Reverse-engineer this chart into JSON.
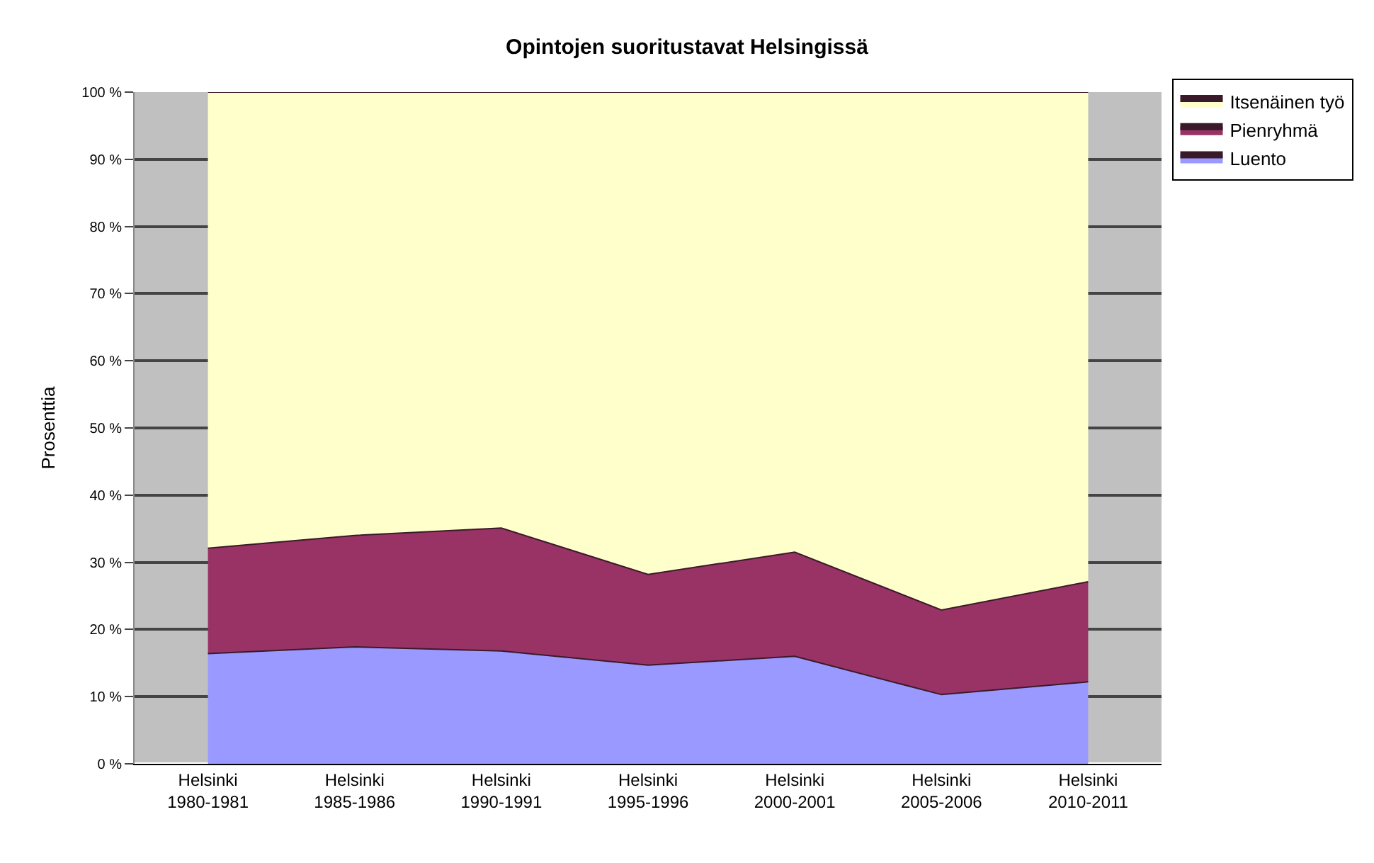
{
  "chart_data": {
    "type": "area",
    "title": "Opintojen suoritustavat Helsingissä",
    "ylabel": "Prosenttia",
    "stacked": true,
    "categories": [
      "Helsinki\n1980-1981",
      "Helsinki\n1985-1986",
      "Helsinki\n1990-1991",
      "Helsinki\n1995-1996",
      "Helsinki\n2000-2001",
      "Helsinki\n2005-2006",
      "Helsinki\n2010-2011"
    ],
    "series": [
      {
        "name": "Luento",
        "color": "#9999ff",
        "values": [
          16.4,
          17.4,
          16.8,
          14.7,
          16.0,
          10.3,
          12.2
        ]
      },
      {
        "name": "Pienryhmä",
        "color": "#993366",
        "values": [
          15.7,
          16.6,
          18.3,
          13.5,
          15.5,
          12.6,
          14.9
        ]
      },
      {
        "name": "Itsenäinen työ",
        "color": "#ffffcc",
        "values": [
          67.9,
          66.0,
          64.9,
          71.8,
          68.5,
          77.1,
          72.9
        ]
      }
    ],
    "ylim": [
      0,
      100
    ],
    "yticks": [
      {
        "value": 0,
        "label": "0 %"
      },
      {
        "value": 10,
        "label": "10 %"
      },
      {
        "value": 20,
        "label": "20 %"
      },
      {
        "value": 30,
        "label": "30 %"
      },
      {
        "value": 40,
        "label": "40 %"
      },
      {
        "value": 50,
        "label": "50 %"
      },
      {
        "value": 60,
        "label": "60 %"
      },
      {
        "value": 70,
        "label": "70 %"
      },
      {
        "value": 80,
        "label": "80 %"
      },
      {
        "value": 90,
        "label": "90 %"
      },
      {
        "value": 100,
        "label": "100 %"
      }
    ],
    "grid": "y",
    "legend": "top right"
  }
}
